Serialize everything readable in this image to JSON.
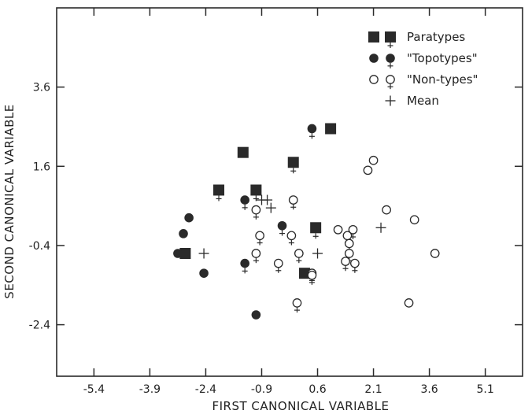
{
  "chart_data": {
    "type": "scatter",
    "xlabel": "FIRST CANONICAL VARIABLE",
    "ylabel": "SECOND CANONICAL VARIABLE",
    "xlim": [
      -6.4,
      6.1
    ],
    "ylim": [
      -3.7,
      5.6
    ],
    "xticks": [
      -5.4,
      -3.9,
      -2.4,
      -0.9,
      0.6,
      2.1,
      3.6,
      5.1
    ],
    "yticks": [
      3.6,
      1.6,
      -0.4,
      -2.4
    ],
    "xtick_labels": [
      "-5.4",
      "-3.9",
      "-2.4",
      "-0.9",
      "0.6",
      "2.1",
      "3.6",
      "5.1"
    ],
    "ytick_labels": [
      "3.6",
      "1.6",
      "-0.4",
      "-2.4"
    ],
    "grid": false,
    "legend_position": "top-right",
    "legend": [
      {
        "label": "Paratypes",
        "marker": "filled-square",
        "sex": "male-female"
      },
      {
        "label": "\"Topotypes\"",
        "marker": "filled-circle",
        "sex": "male-female"
      },
      {
        "label": "\"Non-types\"",
        "marker": "open-circle",
        "sex": "male-female"
      },
      {
        "label": "Mean",
        "marker": "plus",
        "sex": ""
      }
    ],
    "series": [
      {
        "name": "Paratypes",
        "marker": "filled-square",
        "points": [
          {
            "x": -1.4,
            "y": 1.95,
            "sex": "male"
          },
          {
            "x": 0.95,
            "y": 2.55,
            "sex": "male"
          },
          {
            "x": -2.05,
            "y": 1.0,
            "sex": "female"
          },
          {
            "x": -1.05,
            "y": 1.0,
            "sex": "female"
          },
          {
            "x": -0.05,
            "y": 1.7,
            "sex": "female"
          },
          {
            "x": 0.55,
            "y": 0.05,
            "sex": "female"
          },
          {
            "x": 0.25,
            "y": -1.1,
            "sex": "male"
          },
          {
            "x": -2.95,
            "y": -0.6,
            "sex": "male"
          }
        ]
      },
      {
        "name": "\"Topotypes\"",
        "marker": "filled-circle",
        "points": [
          {
            "x": 0.45,
            "y": 2.55,
            "sex": "female"
          },
          {
            "x": -1.35,
            "y": 0.75,
            "sex": "female"
          },
          {
            "x": -2.85,
            "y": 0.3,
            "sex": "male"
          },
          {
            "x": -3.0,
            "y": -0.1,
            "sex": "male"
          },
          {
            "x": -3.15,
            "y": -0.6,
            "sex": "male"
          },
          {
            "x": -0.35,
            "y": 0.1,
            "sex": "female"
          },
          {
            "x": -1.35,
            "y": -0.85,
            "sex": "female"
          },
          {
            "x": -2.45,
            "y": -1.1,
            "sex": "male"
          },
          {
            "x": -1.05,
            "y": -2.15,
            "sex": "male"
          }
        ]
      },
      {
        "name": "\"Non-types\"",
        "marker": "open-circle",
        "points": [
          {
            "x": 1.95,
            "y": 1.5,
            "sex": "male"
          },
          {
            "x": 2.1,
            "y": 1.75,
            "sex": "male"
          },
          {
            "x": 2.45,
            "y": 0.5,
            "sex": "male"
          },
          {
            "x": 3.2,
            "y": 0.25,
            "sex": "male"
          },
          {
            "x": 3.75,
            "y": -0.6,
            "sex": "male"
          },
          {
            "x": -0.05,
            "y": 0.75,
            "sex": "female"
          },
          {
            "x": -1.05,
            "y": 0.5,
            "sex": "female"
          },
          {
            "x": -0.95,
            "y": -0.15,
            "sex": "female"
          },
          {
            "x": -0.1,
            "y": -0.15,
            "sex": "female"
          },
          {
            "x": 1.15,
            "y": 0.0,
            "sex": "male"
          },
          {
            "x": 1.55,
            "y": 0.0,
            "sex": "female"
          },
          {
            "x": 1.4,
            "y": -0.15,
            "sex": "female"
          },
          {
            "x": 1.45,
            "y": -0.35,
            "sex": "female"
          },
          {
            "x": -1.05,
            "y": -0.6,
            "sex": "female"
          },
          {
            "x": 0.1,
            "y": -0.6,
            "sex": "female"
          },
          {
            "x": -0.45,
            "y": -0.85,
            "sex": "female"
          },
          {
            "x": 0.45,
            "y": -1.1,
            "sex": "female"
          },
          {
            "x": 1.45,
            "y": -0.6,
            "sex": "female"
          },
          {
            "x": 1.35,
            "y": -0.8,
            "sex": "female"
          },
          {
            "x": 1.6,
            "y": -0.85,
            "sex": "female"
          },
          {
            "x": 0.45,
            "y": -1.15,
            "sex": "female"
          },
          {
            "x": 0.05,
            "y": -1.85,
            "sex": "female"
          },
          {
            "x": 3.05,
            "y": -1.85,
            "sex": "male"
          }
        ]
      },
      {
        "name": "Mean",
        "marker": "plus",
        "points": [
          {
            "x": -0.9,
            "y": 0.75
          },
          {
            "x": -0.75,
            "y": 0.75
          },
          {
            "x": -0.65,
            "y": 0.55
          },
          {
            "x": 2.3,
            "y": 0.05
          },
          {
            "x": 0.6,
            "y": -0.6
          },
          {
            "x": -2.45,
            "y": -0.6
          }
        ]
      }
    ]
  }
}
